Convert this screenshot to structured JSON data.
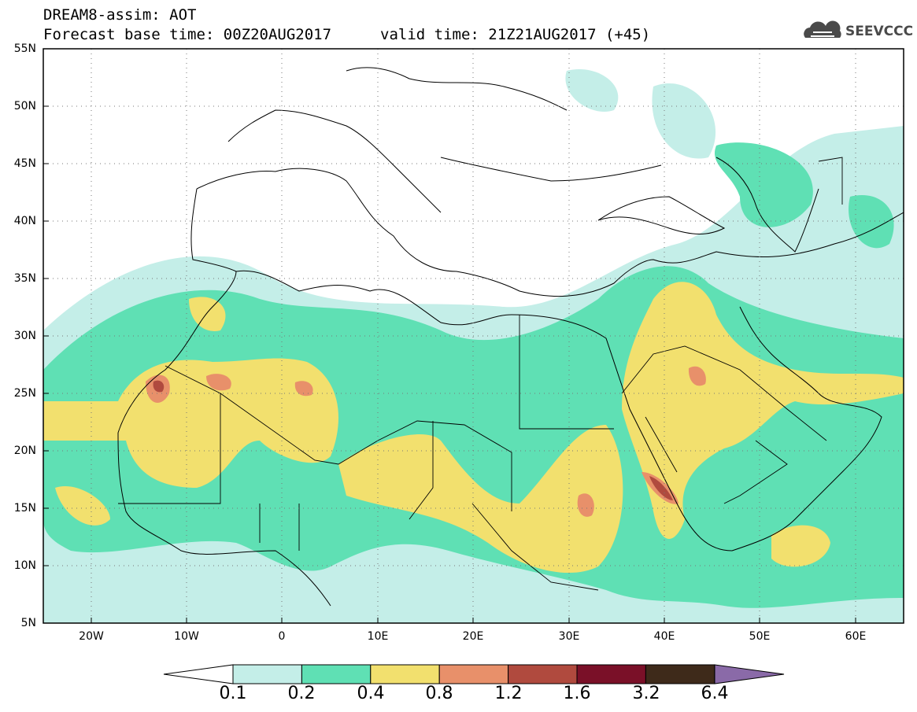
{
  "header": {
    "title": "DREAM8-assim: AOT",
    "base_time": "Forecast base time: 00Z20AUG2017",
    "valid_time": "valid time: 21Z21AUG2017 (+45)"
  },
  "logo": {
    "text": "SEEVCCC",
    "icon": "cloud-icon"
  },
  "map": {
    "projection": "lat-lon",
    "lon_range": [
      -25,
      65
    ],
    "lat_range": [
      5,
      55
    ],
    "lat_labels": [
      "55N",
      "50N",
      "45N",
      "40N",
      "35N",
      "30N",
      "25N",
      "20N",
      "15N",
      "10N",
      "5N"
    ],
    "lon_labels": [
      "20W",
      "10W",
      "0",
      "10E",
      "20E",
      "30E",
      "40E",
      "50E",
      "60E"
    ],
    "grid": "dotted"
  },
  "colorbar": {
    "labels": [
      "0.1",
      "0.2",
      "0.4",
      "0.8",
      "1.2",
      "1.6",
      "3.2",
      "6.4"
    ],
    "colors": [
      "#c4eee8",
      "#5fe0b4",
      "#f2e06e",
      "#e8906a",
      "#b04a3e",
      "#7a1028",
      "#3e2a1a",
      "#8a6aa8"
    ]
  }
}
